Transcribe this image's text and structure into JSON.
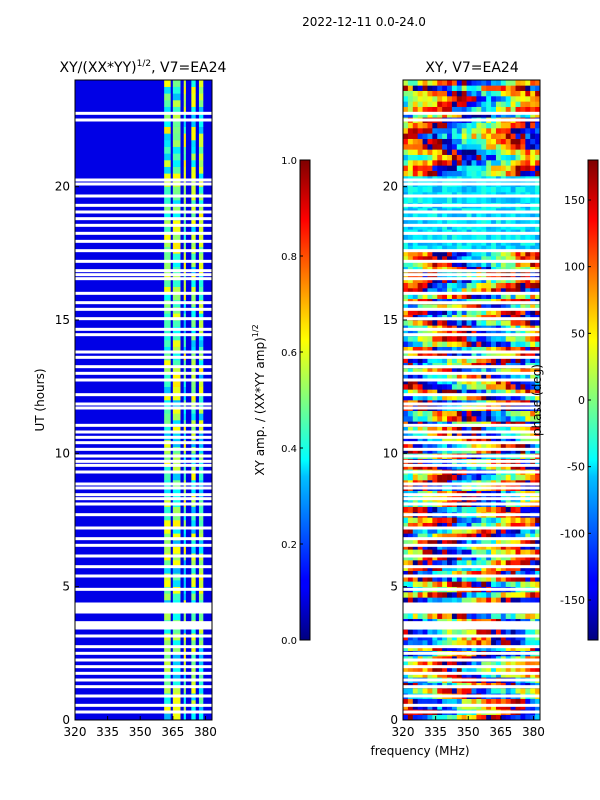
{
  "figure_title": "2022-12-11 0.0-24.0",
  "shared_xlabel": "frequency (MHz)",
  "chart_data": [
    {
      "type": "heatmap",
      "id": "amp",
      "title": "XY/(XX*YY)",
      "title_sup": "1/2",
      "title_suffix": ", V7=EA24",
      "ylabel": "UT (hours)",
      "xlim": [
        320,
        383
      ],
      "ylim": [
        0,
        24
      ],
      "xticks": [
        320,
        335,
        350,
        365,
        380
      ],
      "yticks": [
        0,
        5,
        10,
        15,
        20
      ],
      "colorbar": {
        "label": "XY amp. / (XX*YY amp)",
        "label_sup": "1/2",
        "range": [
          0.0,
          1.0
        ],
        "ticks": [
          "0.0",
          "0.2",
          "0.4",
          "0.6",
          "0.8",
          "1.0"
        ],
        "colormap": "jet"
      },
      "bright_channel_bands_mhz": [
        [
          361,
          364
        ],
        [
          365,
          368.5
        ],
        [
          370,
          371
        ],
        [
          373.5,
          375.5
        ],
        [
          377,
          379
        ]
      ],
      "background_value": 0.1,
      "band_value_range": [
        0.3,
        0.65
      ]
    },
    {
      "type": "heatmap",
      "id": "phase",
      "title": "XY, V7=EA24",
      "xlim": [
        320,
        383
      ],
      "ylim": [
        0,
        24
      ],
      "xticks": [
        320,
        335,
        350,
        365,
        380
      ],
      "yticks": [
        0,
        5,
        10,
        15,
        20
      ],
      "colorbar": {
        "label": "phase (deg)",
        "range": [
          -180,
          180
        ],
        "ticks": [
          "-150",
          "-100",
          "-50",
          "0",
          "50",
          "100",
          "150"
        ],
        "colormap": "jet"
      }
    }
  ],
  "flagged_hours": [
    0.3,
    0.55,
    0.9,
    1.25,
    1.5,
    1.75,
    2.0,
    2.25,
    2.5,
    2.75,
    3.15,
    3.45,
    3.55,
    3.65,
    4.05,
    4.15,
    4.25,
    4.35,
    4.9,
    5.4,
    5.75,
    6.15,
    6.55,
    6.8,
    7.2,
    7.7,
    8.1,
    8.3,
    8.45,
    8.7,
    8.85,
    9.3,
    9.55,
    9.7,
    9.9,
    10.15,
    10.4,
    10.6,
    10.8,
    11.05,
    11.7,
    11.85,
    12.2,
    12.75,
    13.0,
    13.25,
    13.6,
    13.8,
    14.45,
    14.65,
    15.05,
    15.4,
    15.65,
    16.0,
    16.55,
    16.7,
    16.85,
    17.2,
    17.6,
    17.95,
    18.25,
    18.55,
    18.8,
    19.05,
    19.3,
    19.65,
    20.1,
    20.25,
    22.5,
    22.75
  ]
}
